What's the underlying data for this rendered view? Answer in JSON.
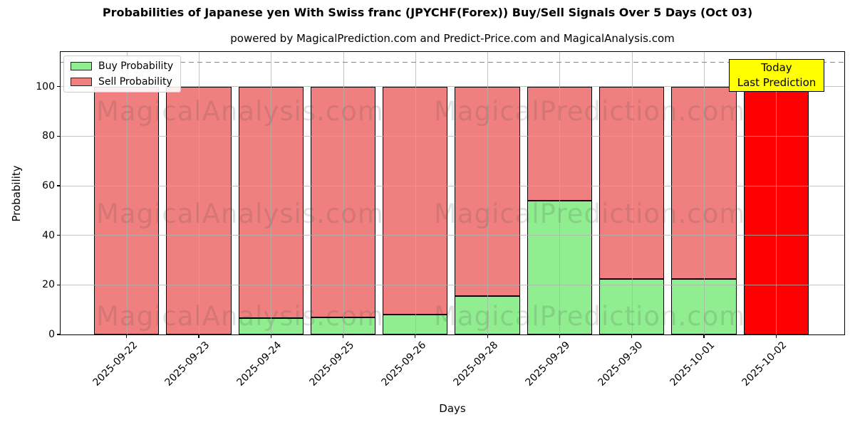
{
  "title": "Probabilities of Japanese yen With Swiss franc (JPYCHF(Forex)) Buy/Sell Signals Over 5 Days (Oct 03)",
  "subtitle": "powered by MagicalPrediction.com and Predict-Price.com and MagicalAnalysis.com",
  "legend": [
    {
      "label": "Buy Probability",
      "color": "#90ee90"
    },
    {
      "label": "Sell Probability",
      "color": "#f08080"
    }
  ],
  "annotation": {
    "line1": "Today",
    "line2": "Last Prediction",
    "bg_color": "#ffff00"
  },
  "watermarks": {
    "left": "MagicalAnalysis.com",
    "right": "MagicalPrediction.com"
  },
  "chart_data": {
    "type": "bar",
    "stacked": true,
    "title": "Probabilities of Japanese yen With Swiss franc (JPYCHF(Forex)) Buy/Sell Signals Over 5 Days (Oct 03)",
    "xlabel": "Days",
    "ylabel": "Probability",
    "categories": [
      "2025-09-22",
      "2025-09-23",
      "2025-09-24",
      "2025-09-25",
      "2025-09-26",
      "2025-09-28",
      "2025-09-29",
      "2025-09-30",
      "2025-10-01",
      "2025-10-02"
    ],
    "series": [
      {
        "name": "Buy Probability",
        "color": "#90ee90",
        "values": [
          0,
          0,
          6.5,
          7,
          8,
          15.5,
          54,
          22.5,
          22.5,
          0
        ]
      },
      {
        "name": "Sell Probability",
        "color": "#f08080",
        "values": [
          100,
          100,
          93.5,
          93,
          92,
          84.5,
          46,
          77.5,
          77.5,
          0
        ]
      }
    ],
    "highlight_bar": {
      "index": 9,
      "value": 100,
      "color": "#ff0000",
      "label": "Today Last Prediction"
    },
    "yticks": [
      0,
      20,
      40,
      60,
      80,
      100
    ],
    "ylim": [
      0,
      114
    ],
    "dashed_line_y": 110,
    "grid": true,
    "legend_position": "upper left",
    "bar_edge_color": "#000000"
  }
}
